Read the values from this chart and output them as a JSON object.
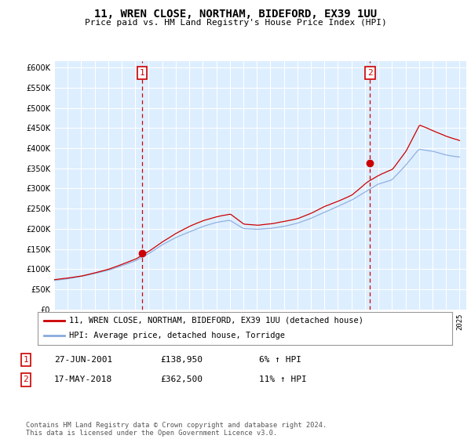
{
  "title": "11, WREN CLOSE, NORTHAM, BIDEFORD, EX39 1UU",
  "subtitle": "Price paid vs. HM Land Registry's House Price Index (HPI)",
  "ytick_values": [
    0,
    50000,
    100000,
    150000,
    200000,
    250000,
    300000,
    350000,
    400000,
    450000,
    500000,
    550000,
    600000
  ],
  "ylim": [
    0,
    615000
  ],
  "price_color": "#cc0000",
  "hpi_color": "#88aadd",
  "marker1_x": 2001.5,
  "marker2_x": 2018.38,
  "marker1_price": 138950,
  "marker2_price": 362500,
  "legend_label_price": "11, WREN CLOSE, NORTHAM, BIDEFORD, EX39 1UU (detached house)",
  "legend_label_hpi": "HPI: Average price, detached house, Torridge",
  "table_row1": [
    "1",
    "27-JUN-2001",
    "£138,950",
    "6% ↑ HPI"
  ],
  "table_row2": [
    "2",
    "17-MAY-2018",
    "£362,500",
    "11% ↑ HPI"
  ],
  "footer": "Contains HM Land Registry data © Crown copyright and database right 2024.\nThis data is licensed under the Open Government Licence v3.0.",
  "background_color": "#ffffff",
  "plot_bg_color": "#ddeeff",
  "grid_color": "#ffffff"
}
